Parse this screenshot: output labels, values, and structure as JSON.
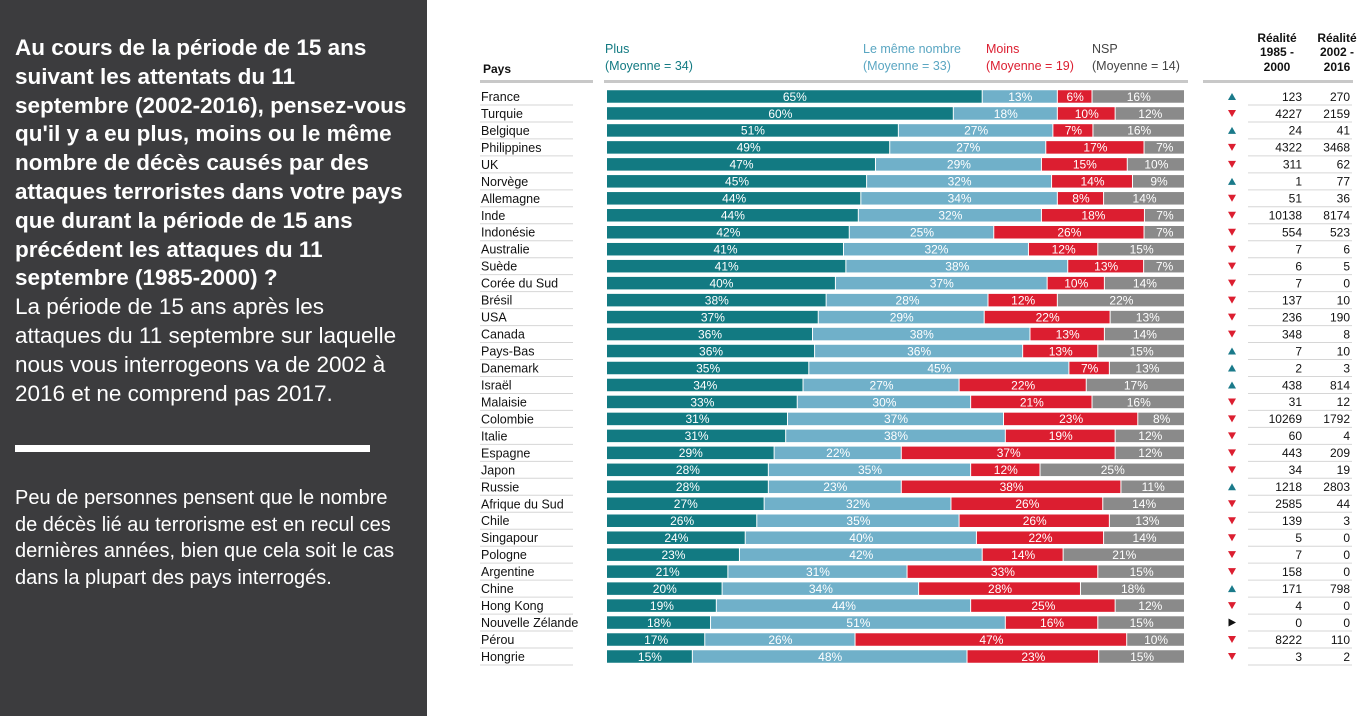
{
  "panel": {
    "question": "Au cours de la période de 15 ans suivant les attentats du 11 septembre (2002-2016), pensez-vous qu'il y a eu plus, moins ou le même nombre de décès causés par des attaques terroristes dans votre pays que durant la période de 15 ans précédent les attaques du 11 septembre (1985-2000) ?",
    "explanation": "La période de 15 ans après les attaques du 11 septembre sur laquelle nous vous interrogeons va de 2002 à 2016 et ne comprend pas 2017.",
    "summary": "Peu de personnes pensent que le nombre de décès lié au terrorisme est en recul ces dernières années, bien que cela soit le cas dans la plupart des pays interrogés."
  },
  "chart_data": {
    "type": "bar",
    "stacked": true,
    "orientation": "horizontal",
    "percent_scale": [
      0,
      100
    ],
    "category_header": "Pays",
    "colors": {
      "plus": "#127a82",
      "meme": "#70b0c9",
      "moins": "#dc1e30",
      "nsp": "#8a8a8a",
      "up": "#1a7a8a",
      "down": "#dc1e30",
      "flat": "#111111"
    },
    "legend": [
      {
        "key": "plus",
        "name": "Plus",
        "sub": "(Moyenne = 34)"
      },
      {
        "key": "meme",
        "name": "Le même nombre",
        "sub": "(Moyenne = 33)"
      },
      {
        "key": "moins",
        "name": "Moins",
        "sub": "(Moyenne = 19)"
      },
      {
        "key": "nsp",
        "name": "NSP",
        "sub": "(Moyenne = 14)"
      }
    ],
    "reality_headers": [
      {
        "line1": "Réalité",
        "line2": "1985 -",
        "line3": "2000"
      },
      {
        "line1": "Réalité",
        "line2": "2002 -",
        "line3": "2016"
      }
    ],
    "rows": [
      {
        "country": "France",
        "plus": 65,
        "meme": 13,
        "moins": 6,
        "nsp": 16,
        "trend": "up",
        "r1": "123",
        "r2": "270"
      },
      {
        "country": "Turquie",
        "plus": 60,
        "meme": 18,
        "moins": 10,
        "nsp": 12,
        "trend": "down",
        "r1": "4227",
        "r2": "2159"
      },
      {
        "country": "Belgique",
        "plus": 51,
        "meme": 27,
        "moins": 7,
        "nsp": 16,
        "trend": "up",
        "r1": "24",
        "r2": "41"
      },
      {
        "country": "Philippines",
        "plus": 49,
        "meme": 27,
        "moins": 17,
        "nsp": 7,
        "trend": "down",
        "r1": "4322",
        "r2": "3468"
      },
      {
        "country": "UK",
        "plus": 47,
        "meme": 29,
        "moins": 15,
        "nsp": 10,
        "trend": "down",
        "r1": "311",
        "r2": "62"
      },
      {
        "country": "Norvège",
        "plus": 45,
        "meme": 32,
        "moins": 14,
        "nsp": 9,
        "trend": "up",
        "r1": "1",
        "r2": "77"
      },
      {
        "country": "Allemagne",
        "plus": 44,
        "meme": 34,
        "moins": 8,
        "nsp": 14,
        "trend": "down",
        "r1": "51",
        "r2": "36"
      },
      {
        "country": "Inde",
        "plus": 44,
        "meme": 32,
        "moins": 18,
        "nsp": 7,
        "trend": "down",
        "r1": "10138",
        "r2": "8174"
      },
      {
        "country": "Indonésie",
        "plus": 42,
        "meme": 25,
        "moins": 26,
        "nsp": 7,
        "trend": "down",
        "r1": "554",
        "r2": "523"
      },
      {
        "country": "Australie",
        "plus": 41,
        "meme": 32,
        "moins": 12,
        "nsp": 15,
        "trend": "down",
        "r1": "7",
        "r2": "6"
      },
      {
        "country": "Suède",
        "plus": 41,
        "meme": 38,
        "moins": 13,
        "nsp": 7,
        "trend": "down",
        "r1": "6",
        "r2": "5"
      },
      {
        "country": "Corée du Sud",
        "plus": 40,
        "meme": 37,
        "moins": 10,
        "nsp": 14,
        "trend": "down",
        "r1": "7",
        "r2": "0"
      },
      {
        "country": "Brésil",
        "plus": 38,
        "meme": 28,
        "moins": 12,
        "nsp": 22,
        "trend": "down",
        "r1": "137",
        "r2": "10"
      },
      {
        "country": "USA",
        "plus": 37,
        "meme": 29,
        "moins": 22,
        "nsp": 13,
        "trend": "down",
        "r1": "236",
        "r2": "190"
      },
      {
        "country": "Canada",
        "plus": 36,
        "meme": 38,
        "moins": 13,
        "nsp": 14,
        "trend": "down",
        "r1": "348",
        "r2": "8"
      },
      {
        "country": "Pays-Bas",
        "plus": 36,
        "meme": 36,
        "moins": 13,
        "nsp": 15,
        "trend": "up",
        "r1": "7",
        "r2": "10"
      },
      {
        "country": "Danemark",
        "plus": 35,
        "meme": 45,
        "moins": 7,
        "nsp": 13,
        "trend": "up",
        "r1": "2",
        "r2": "3"
      },
      {
        "country": "Israël",
        "plus": 34,
        "meme": 27,
        "moins": 22,
        "nsp": 17,
        "trend": "up",
        "r1": "438",
        "r2": "814"
      },
      {
        "country": "Malaisie",
        "plus": 33,
        "meme": 30,
        "moins": 21,
        "nsp": 16,
        "trend": "down",
        "r1": "31",
        "r2": "12"
      },
      {
        "country": "Colombie",
        "plus": 31,
        "meme": 37,
        "moins": 23,
        "nsp": 8,
        "trend": "down",
        "r1": "10269",
        "r2": "1792"
      },
      {
        "country": "Italie",
        "plus": 31,
        "meme": 38,
        "moins": 19,
        "nsp": 12,
        "trend": "down",
        "r1": "60",
        "r2": "4"
      },
      {
        "country": "Espagne",
        "plus": 29,
        "meme": 22,
        "moins": 37,
        "nsp": 12,
        "trend": "down",
        "r1": "443",
        "r2": "209"
      },
      {
        "country": "Japon",
        "plus": 28,
        "meme": 35,
        "moins": 12,
        "nsp": 25,
        "trend": "down",
        "r1": "34",
        "r2": "19"
      },
      {
        "country": "Russie",
        "plus": 28,
        "meme": 23,
        "moins": 38,
        "nsp": 11,
        "trend": "up",
        "r1": "1218",
        "r2": "2803"
      },
      {
        "country": "Afrique du Sud",
        "plus": 27,
        "meme": 32,
        "moins": 26,
        "nsp": 14,
        "trend": "down",
        "r1": "2585",
        "r2": "44"
      },
      {
        "country": "Chile",
        "plus": 26,
        "meme": 35,
        "moins": 26,
        "nsp": 13,
        "trend": "down",
        "r1": "139",
        "r2": "3"
      },
      {
        "country": "Singapour",
        "plus": 24,
        "meme": 40,
        "moins": 22,
        "nsp": 14,
        "trend": "down",
        "r1": "5",
        "r2": "0"
      },
      {
        "country": "Pologne",
        "plus": 23,
        "meme": 42,
        "moins": 14,
        "nsp": 21,
        "trend": "down",
        "r1": "7",
        "r2": "0"
      },
      {
        "country": "Argentine",
        "plus": 21,
        "meme": 31,
        "moins": 33,
        "nsp": 15,
        "trend": "down",
        "r1": "158",
        "r2": "0"
      },
      {
        "country": "Chine",
        "plus": 20,
        "meme": 34,
        "moins": 28,
        "nsp": 18,
        "trend": "up",
        "r1": "171",
        "r2": "798"
      },
      {
        "country": "Hong Kong",
        "plus": 19,
        "meme": 44,
        "moins": 25,
        "nsp": 12,
        "trend": "down",
        "r1": "4",
        "r2": "0"
      },
      {
        "country": "Nouvelle Zélande",
        "plus": 18,
        "meme": 51,
        "moins": 16,
        "nsp": 15,
        "trend": "flat",
        "r1": "0",
        "r2": "0"
      },
      {
        "country": "Pérou",
        "plus": 17,
        "meme": 26,
        "moins": 47,
        "nsp": 10,
        "trend": "down",
        "r1": "8222",
        "r2": "110"
      },
      {
        "country": "Hongrie",
        "plus": 15,
        "meme": 48,
        "moins": 23,
        "nsp": 15,
        "trend": "down",
        "r1": "3",
        "r2": "2"
      }
    ]
  }
}
